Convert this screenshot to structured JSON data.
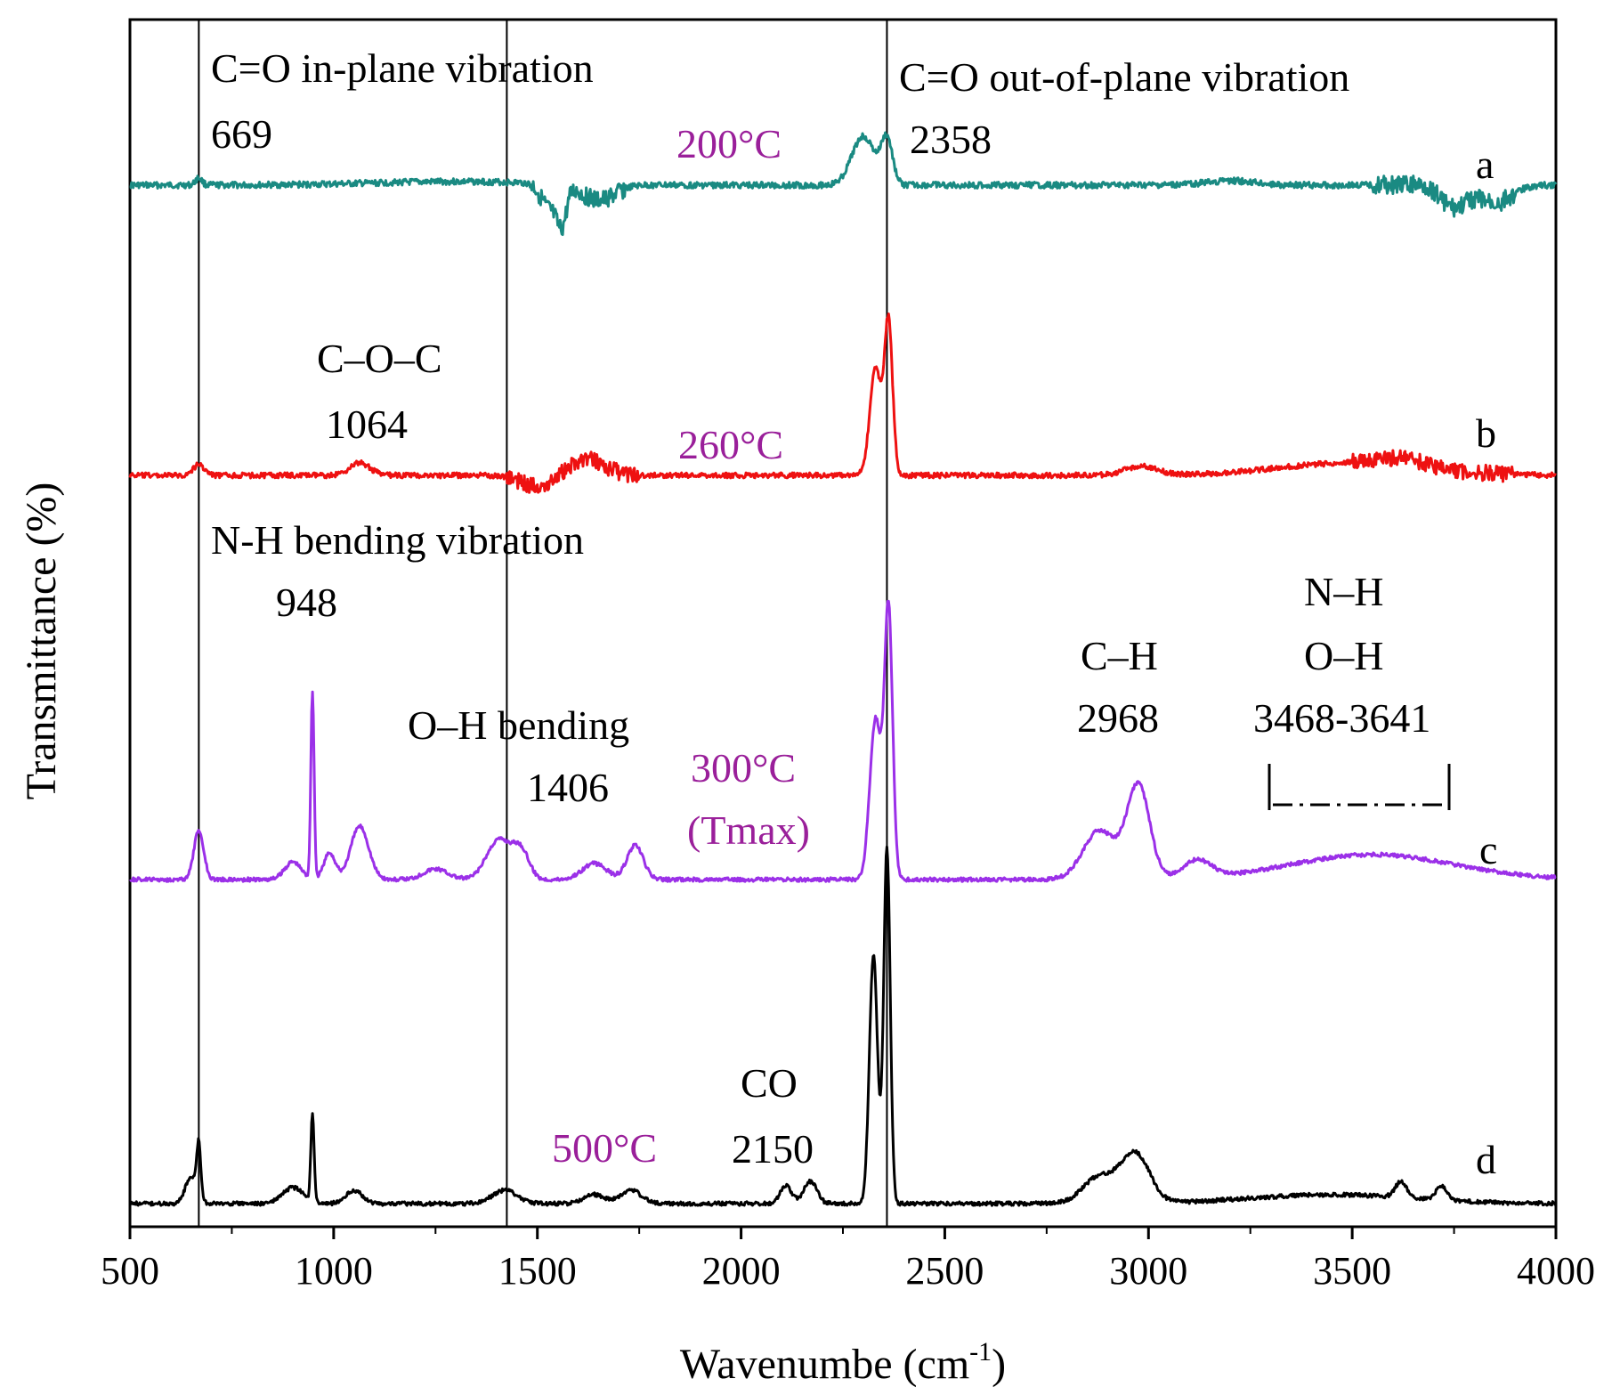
{
  "chart_data": {
    "type": "line",
    "title": "",
    "xlabel": "Wavenumbe (cm",
    "xlabel_sup": "-1",
    "xlabel_close": ")",
    "ylabel": "Transmittance (%)",
    "xlim": [
      500,
      4000
    ],
    "x_ticks": [
      "500",
      "1000",
      "1500",
      "2000",
      "2500",
      "3000",
      "3500",
      "4000"
    ],
    "reference_lines": [
      669,
      1425,
      2358
    ],
    "series": [
      {
        "name": "a",
        "temperature": "200°C",
        "color": "#1a8a82",
        "baseline": 0.0,
        "features": [
          {
            "x": 669,
            "h": 8,
            "w": 8
          },
          {
            "x": 1300,
            "h": 4,
            "w": 200
          },
          {
            "x": 1530,
            "h": -28,
            "w": 20
          },
          {
            "x": 1560,
            "h": -40,
            "w": 12
          },
          {
            "x": 1650,
            "h": -18,
            "w": 40
          },
          {
            "x": 2300,
            "h": 55,
            "w": 28
          },
          {
            "x": 2358,
            "h": 50,
            "w": 14
          },
          {
            "x": 3200,
            "h": 5,
            "w": 60
          },
          {
            "x": 3750,
            "h": -25,
            "w": 30
          },
          {
            "x": 3850,
            "h": -20,
            "w": 40
          }
        ]
      },
      {
        "name": "b",
        "temperature": "260°C",
        "color": "#ee1111",
        "baseline": 0.0,
        "features": [
          {
            "x": 669,
            "h": 12,
            "w": 14
          },
          {
            "x": 1064,
            "h": 14,
            "w": 25
          },
          {
            "x": 1500,
            "h": -12,
            "w": 40
          },
          {
            "x": 1620,
            "h": 18,
            "w": 45
          },
          {
            "x": 2330,
            "h": 120,
            "w": 14
          },
          {
            "x": 2362,
            "h": 170,
            "w": 10
          },
          {
            "x": 2980,
            "h": 10,
            "w": 40
          },
          {
            "x": 3500,
            "h": 14,
            "w": 180
          },
          {
            "x": 3620,
            "h": 8,
            "w": 60
          }
        ]
      },
      {
        "name": "c",
        "temperature": "300°C",
        "temperature_note": "(Tmax)",
        "color": "#9b30e8",
        "baseline": 0.0,
        "features": [
          {
            "x": 669,
            "h": 55,
            "w": 12
          },
          {
            "x": 900,
            "h": 20,
            "w": 20
          },
          {
            "x": 948,
            "h": 210,
            "w": 4
          },
          {
            "x": 990,
            "h": 30,
            "w": 14
          },
          {
            "x": 1064,
            "h": 60,
            "w": 22
          },
          {
            "x": 1250,
            "h": 12,
            "w": 30
          },
          {
            "x": 1406,
            "h": 45,
            "w": 30
          },
          {
            "x": 1460,
            "h": 30,
            "w": 20
          },
          {
            "x": 1640,
            "h": 18,
            "w": 30
          },
          {
            "x": 1740,
            "h": 38,
            "w": 20
          },
          {
            "x": 2330,
            "h": 180,
            "w": 14
          },
          {
            "x": 2362,
            "h": 300,
            "w": 10
          },
          {
            "x": 2880,
            "h": 55,
            "w": 40
          },
          {
            "x": 2975,
            "h": 105,
            "w": 28
          },
          {
            "x": 3120,
            "h": 20,
            "w": 35
          },
          {
            "x": 3550,
            "h": 28,
            "w": 200
          }
        ]
      },
      {
        "name": "d",
        "temperature": "500°C",
        "color": "#000000",
        "baseline": 0.0,
        "features": [
          {
            "x": 650,
            "h": 30,
            "w": 14
          },
          {
            "x": 669,
            "h": 60,
            "w": 5
          },
          {
            "x": 900,
            "h": 18,
            "w": 25
          },
          {
            "x": 948,
            "h": 100,
            "w": 4
          },
          {
            "x": 1050,
            "h": 15,
            "w": 20
          },
          {
            "x": 1420,
            "h": 15,
            "w": 30
          },
          {
            "x": 1640,
            "h": 10,
            "w": 25
          },
          {
            "x": 1730,
            "h": 15,
            "w": 25
          },
          {
            "x": 2110,
            "h": 20,
            "w": 14
          },
          {
            "x": 2170,
            "h": 25,
            "w": 16
          },
          {
            "x": 2325,
            "h": 280,
            "w": 10
          },
          {
            "x": 2358,
            "h": 400,
            "w": 8
          },
          {
            "x": 2880,
            "h": 30,
            "w": 40
          },
          {
            "x": 2968,
            "h": 55,
            "w": 35
          },
          {
            "x": 3450,
            "h": 10,
            "w": 200
          },
          {
            "x": 3620,
            "h": 18,
            "w": 14
          },
          {
            "x": 3720,
            "h": 16,
            "w": 14
          }
        ]
      }
    ],
    "annotations": [
      {
        "key": "co_inplane",
        "text": "C=O in-plane vibration"
      },
      {
        "key": "v669",
        "text": "669"
      },
      {
        "key": "co_outplane",
        "text": "C=O out-of-plane vibration"
      },
      {
        "key": "v2358",
        "text": "2358"
      },
      {
        "key": "coc",
        "text": "C–O–C"
      },
      {
        "key": "v1064",
        "text": "1064"
      },
      {
        "key": "nh_bend",
        "text": "N-H bending vibration"
      },
      {
        "key": "v948",
        "text": "948"
      },
      {
        "key": "oh_bend",
        "text": "O–H bending"
      },
      {
        "key": "v1406",
        "text": "1406"
      },
      {
        "key": "ch",
        "text": "C–H"
      },
      {
        "key": "v2968",
        "text": "2968"
      },
      {
        "key": "nh",
        "text": "N–H"
      },
      {
        "key": "oh",
        "text": "O–H"
      },
      {
        "key": "vrange",
        "text": "3468-3641"
      },
      {
        "key": "co",
        "text": "CO"
      },
      {
        "key": "v2150",
        "text": "2150"
      }
    ]
  },
  "colors": {
    "temp_label": "#9a1f9a",
    "axis": "#000000"
  }
}
